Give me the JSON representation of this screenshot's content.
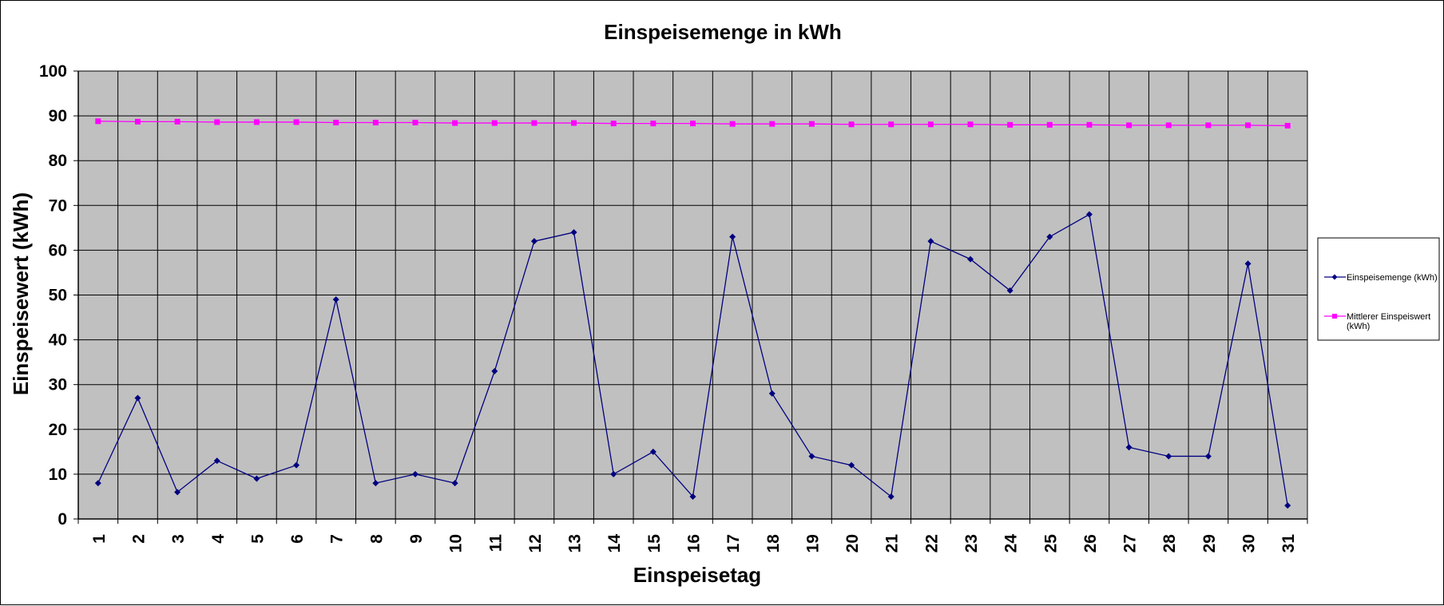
{
  "chart_data": {
    "type": "line",
    "title": "Einspeisemenge in kWh",
    "xlabel": "Einspeisetag",
    "ylabel": "Einspeisewert  (kWh)",
    "ylim": [
      0,
      100
    ],
    "yticks": [
      0,
      10,
      20,
      30,
      40,
      50,
      60,
      70,
      80,
      90,
      100
    ],
    "categories": [
      "1",
      "2",
      "3",
      "4",
      "5",
      "6",
      "7",
      "8",
      "9",
      "10",
      "11",
      "12",
      "13",
      "14",
      "15",
      "16",
      "17",
      "18",
      "19",
      "20",
      "21",
      "22",
      "23",
      "24",
      "25",
      "26",
      "27",
      "28",
      "29",
      "30",
      "31"
    ],
    "grid": true,
    "legend_position": "right",
    "plot_background": "#c0c0c0",
    "series": [
      {
        "name": "Einspeisemenge (kWh)",
        "color": "#000080",
        "marker": "diamond",
        "values": [
          8,
          27,
          6,
          13,
          9,
          12,
          49,
          8,
          10,
          8,
          33,
          62,
          64,
          10,
          15,
          5,
          63,
          28,
          14,
          12,
          5,
          62,
          58,
          51,
          63,
          68,
          16,
          14,
          14,
          57,
          3
        ]
      },
      {
        "name": "Mittlerer Einspeiswert (kWh)",
        "legend_lines": [
          "Mittlerer Einspeiswert",
          "(kWh)"
        ],
        "color": "#ff00ff",
        "marker": "square",
        "values": [
          88.8,
          88.7,
          88.7,
          88.6,
          88.6,
          88.6,
          88.5,
          88.5,
          88.5,
          88.4,
          88.4,
          88.4,
          88.4,
          88.3,
          88.3,
          88.3,
          88.2,
          88.2,
          88.2,
          88.1,
          88.1,
          88.1,
          88.1,
          88.0,
          88.0,
          88.0,
          87.9,
          87.9,
          87.9,
          87.9,
          87.8
        ]
      }
    ]
  }
}
